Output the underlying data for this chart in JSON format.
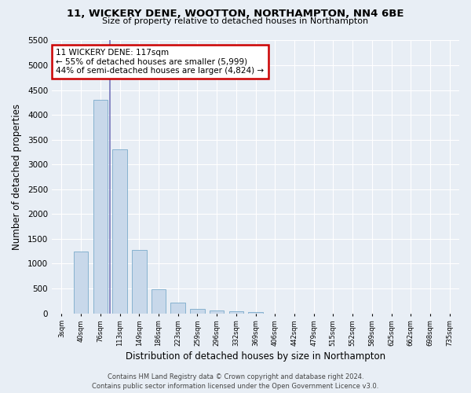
{
  "title": "11, WICKERY DENE, WOOTTON, NORTHAMPTON, NN4 6BE",
  "subtitle": "Size of property relative to detached houses in Northampton",
  "xlabel": "Distribution of detached houses by size in Northampton",
  "ylabel": "Number of detached properties",
  "bar_color": "#c8d8ea",
  "bar_edge_color": "#7aaaca",
  "background_color": "#e8eef5",
  "grid_color": "#ffffff",
  "annotation_box_color": "#cc0000",
  "property_line_color": "#7777bb",
  "bins": [
    "3sqm",
    "40sqm",
    "76sqm",
    "113sqm",
    "149sqm",
    "186sqm",
    "223sqm",
    "259sqm",
    "296sqm",
    "332sqm",
    "369sqm",
    "406sqm",
    "442sqm",
    "479sqm",
    "515sqm",
    "552sqm",
    "589sqm",
    "625sqm",
    "662sqm",
    "698sqm",
    "735sqm"
  ],
  "values": [
    0,
    1250,
    4300,
    3300,
    1280,
    490,
    215,
    90,
    60,
    45,
    30,
    0,
    0,
    0,
    0,
    0,
    0,
    0,
    0,
    0,
    0
  ],
  "property_size_label": "11 WICKERY DENE: 117sqm",
  "annotation_line1": "← 55% of detached houses are smaller (5,999)",
  "annotation_line2": "44% of semi-detached houses are larger (4,824) →",
  "property_bin_index": 2,
  "ylim": [
    0,
    5500
  ],
  "yticks": [
    0,
    500,
    1000,
    1500,
    2000,
    2500,
    3000,
    3500,
    4000,
    4500,
    5000,
    5500
  ],
  "footer_line1": "Contains HM Land Registry data © Crown copyright and database right 2024.",
  "footer_line2": "Contains public sector information licensed under the Open Government Licence v3.0."
}
